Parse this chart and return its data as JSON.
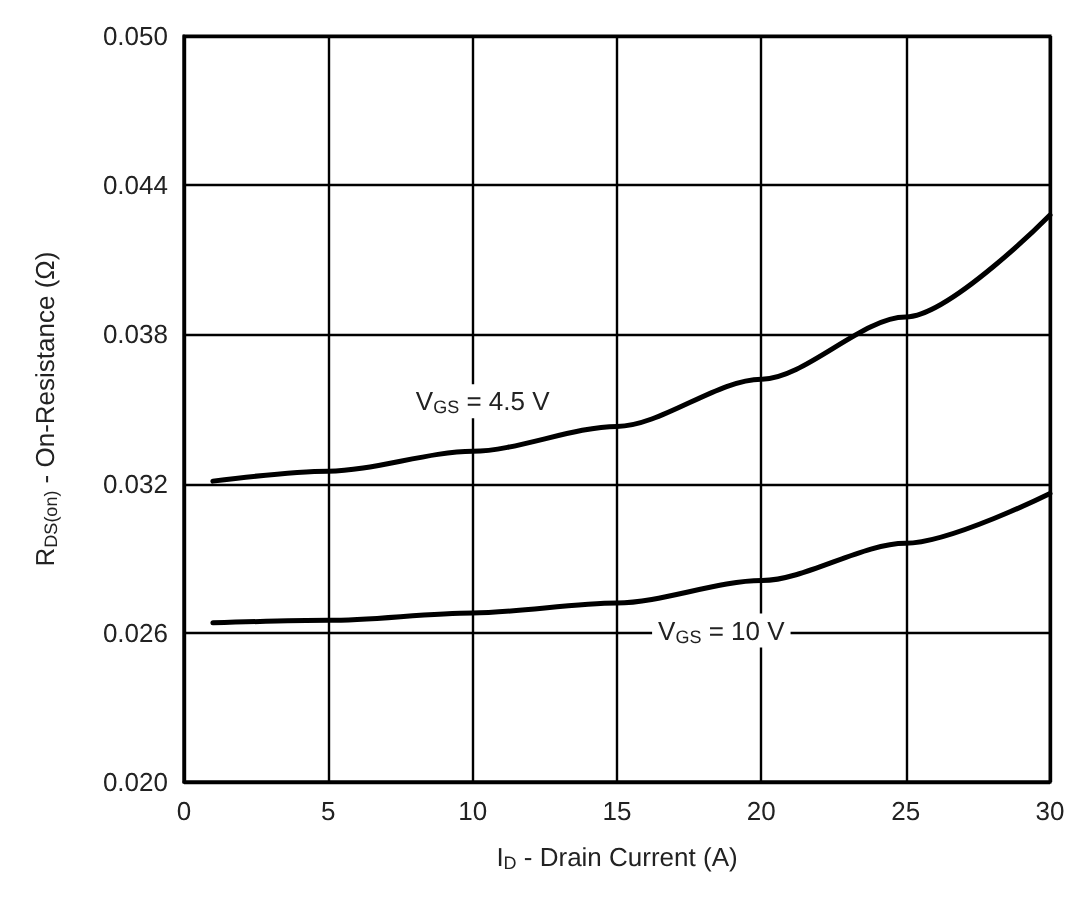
{
  "chart_data": {
    "type": "line",
    "xlabel": "I$_{D}$ - Drain Current (A)",
    "ylabel": "R$_{DS(on)}$ - On-Resistance (Ω)",
    "x": [
      1,
      5,
      10,
      15,
      20,
      25,
      30
    ],
    "series": [
      {
        "color": "#000000",
        "values": [
          0.0321,
          0.0325,
          0.0333,
          0.0343,
          0.0362,
          0.0387,
          0.0428
        ]
      },
      {
        "color": "#000000",
        "values": [
          0.0264,
          0.0265,
          0.0268,
          0.0272,
          0.0281,
          0.0296,
          0.0316
        ]
      }
    ],
    "xlim": [
      0,
      30
    ],
    "xticks": [
      0,
      5,
      10,
      15,
      20,
      25,
      30
    ],
    "ylim": [
      0.02,
      0.05
    ],
    "yticks": [
      {
        "value": 0.02,
        "label": "0.020"
      },
      {
        "value": 0.026,
        "label": "0.026"
      },
      {
        "value": 0.032,
        "label": "0.032"
      },
      {
        "value": 0.038,
        "label": "0.038"
      },
      {
        "value": 0.044,
        "label": "0.044"
      },
      {
        "value": 0.05,
        "label": "0.050"
      }
    ],
    "grid": true,
    "marker": "none",
    "line_style": "solid",
    "annotations": [
      "V$_{GS}$ = 4.5 V",
      "V$_{GS}$ = 10 V"
    ]
  }
}
